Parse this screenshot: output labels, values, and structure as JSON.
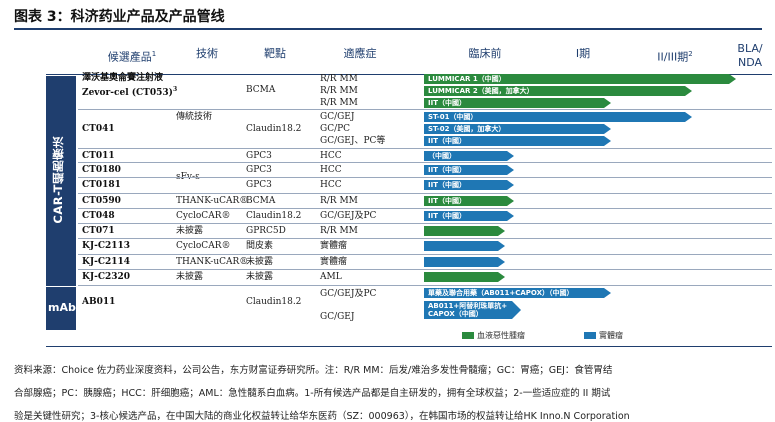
{
  "title": "图表 3：科济药业产品及产品管线",
  "headers": {
    "candidate": "候選產品",
    "candidate_sup": "1",
    "technology": "技術",
    "target": "靶點",
    "indication": "適應症",
    "preclinical": "臨床前",
    "phase1": "I期",
    "phase23": "II/III期",
    "phase23_sup": "2",
    "bla": "BLA/\nNDA"
  },
  "groups": {
    "car_t": "CAR-T細胞療法",
    "mab": "mAb"
  },
  "rows": [
    {
      "candidate": "澤沃基奧侖賽注射液\nZevor-cel (CT053)",
      "candidate_sup": "3",
      "technology": "",
      "target": "BCMA",
      "indications": [
        "R/R MM",
        "R/R MM",
        "R/R MM"
      ]
    },
    {
      "candidate": "CT041",
      "technology": "傳統技術",
      "target": "Claudin18.2",
      "indications": [
        "GC/GEJ",
        "GC/PC",
        "GC/GEJ、PC等"
      ]
    },
    {
      "candidate": "CT011",
      "technology": "",
      "target": "GPC3",
      "indications": [
        "HCC"
      ]
    },
    {
      "candidate": "CT0180",
      "technology": "sFv-ε",
      "target": "GPC3",
      "indications": [
        "HCC"
      ]
    },
    {
      "candidate": "CT0181",
      "technology": "",
      "target": "GPC3",
      "indications": [
        "HCC"
      ]
    },
    {
      "candidate": "CT0590",
      "technology": "THANK-uCAR®",
      "target": "BCMA",
      "indications": [
        "R/R MM"
      ]
    },
    {
      "candidate": "CT048",
      "technology": "CycloCAR®",
      "target": "Claudin18.2",
      "indications": [
        "GC/GEJ及PC"
      ]
    },
    {
      "candidate": "CT071",
      "technology": "未披露",
      "target": "GPRC5D",
      "indications": [
        "R/R MM"
      ]
    },
    {
      "candidate": "KJ-C2113",
      "technology": "CycloCAR®",
      "target": "間皮素",
      "indications": [
        "實體瘤"
      ]
    },
    {
      "candidate": "KJ-C2114",
      "technology": "THANK-uCAR®",
      "target": "未披露",
      "indications": [
        "實體瘤"
      ]
    },
    {
      "candidate": "KJ-C2320",
      "technology": "未披露",
      "target": "未披露",
      "indications": [
        "AML"
      ]
    },
    {
      "candidate": "AB011",
      "technology": "",
      "target": "Claudin18.2",
      "indications": [
        "GC/GEJ及PC",
        "GC/GEJ"
      ]
    }
  ],
  "bars": [
    {
      "label": "LUMMICAR 1（中國）",
      "color": "green",
      "progress": 1.0
    },
    {
      "label": "LUMMICAR 2（美國，加拿大）",
      "color": "green",
      "progress": 0.86
    },
    {
      "label": "IIT（中國）",
      "color": "green",
      "progress": 0.6
    },
    {
      "label": "ST-01（中國）",
      "color": "blue",
      "progress": 0.86
    },
    {
      "label": "ST-02（美國，加拿大）",
      "color": "blue",
      "progress": 0.6
    },
    {
      "label": "IIT（中國）",
      "color": "blue",
      "progress": 0.6
    },
    {
      "label": "（中國）",
      "color": "blue",
      "progress": 0.29
    },
    {
      "label": "IIT（中國）",
      "color": "blue",
      "progress": 0.29
    },
    {
      "label": "IIT（中國）",
      "color": "blue",
      "progress": 0.29
    },
    {
      "label": "IIT（中國）",
      "color": "green",
      "progress": 0.29
    },
    {
      "label": "IIT（中國）",
      "color": "blue",
      "progress": 0.29
    },
    {
      "label": "",
      "color": "green",
      "progress": 0.26
    },
    {
      "label": "",
      "color": "blue",
      "progress": 0.26
    },
    {
      "label": "",
      "color": "blue",
      "progress": 0.26
    },
    {
      "label": "",
      "color": "green",
      "progress": 0.26
    },
    {
      "label": "單藥及聯合用藥（AB011+CAPOX）（中國）",
      "color": "blue",
      "progress": 0.6
    },
    {
      "label": "AB011+阿替利珠單抗+\nCAPOX（中國）",
      "color": "blue",
      "progress": 0.31
    }
  ],
  "legend": {
    "heme": "血液惡性腫瘤",
    "solid": "實體瘤",
    "heme_color": "#2b8a3e",
    "solid_color": "#1f77b4"
  },
  "source": [
    "资料来源：Choice 佐力药业深度资料，公司公告，东方财富证券研究所。注：R/R MM：后发/难治多发性骨髓瘤；GC：胃癌；GEJ：食管胃结",
    "合部腺癌；PC：胰腺癌；HCC：肝细胞癌；AML：急性髓系白血病。1-所有候选产品都是自主研发的，拥有全球权益；2-一些适应症的 II 期试",
    "验是关键性研究；3-核心候选产品，在中国大陆的商业化权益转让给华东医药（SZ：000963），在韩国市场的权益转让给HK Inno.N Corporation"
  ]
}
